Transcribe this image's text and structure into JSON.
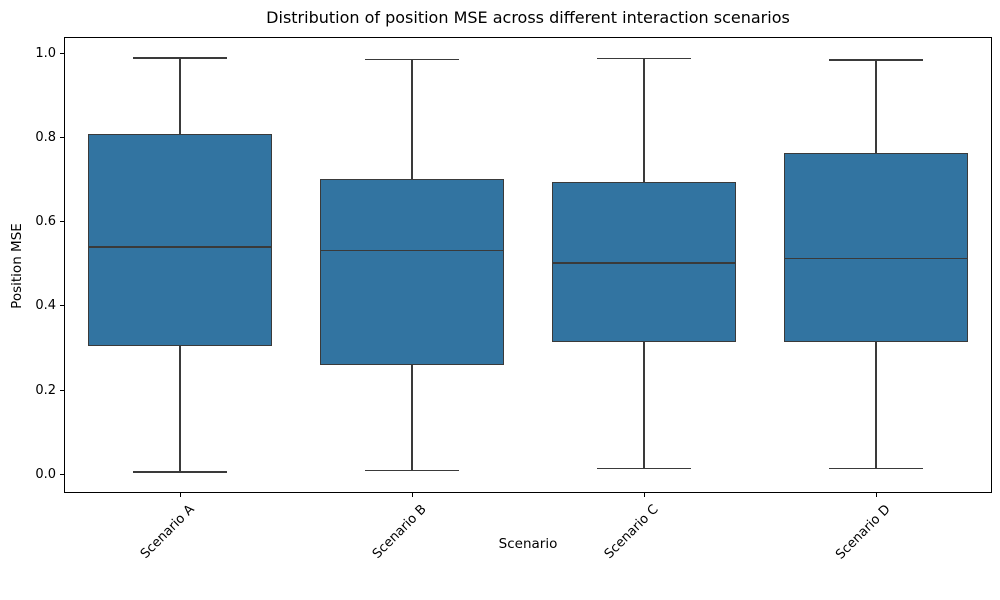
{
  "chart_data": {
    "type": "box",
    "title": "Distribution of position MSE across different interaction scenarios",
    "xlabel": "Scenario",
    "ylabel": "Position MSE",
    "categories": [
      "Scenario A",
      "Scenario B",
      "Scenario C",
      "Scenario D"
    ],
    "ytick_labels": [
      "0.0",
      "0.2",
      "0.4",
      "0.6",
      "0.8",
      "1.0"
    ],
    "ytick_values": [
      0.0,
      0.2,
      0.4,
      0.6,
      0.8,
      1.0
    ],
    "ylim": [
      -0.045,
      1.04
    ],
    "grid": "off",
    "legend": "none",
    "boxes": [
      {
        "label": "Scenario A",
        "whislo": 0.005,
        "q1": 0.305,
        "med": 0.54,
        "q3": 0.81,
        "whishi": 0.99
      },
      {
        "label": "Scenario B",
        "whislo": 0.008,
        "q1": 0.26,
        "med": 0.532,
        "q3": 0.703,
        "whishi": 0.987
      },
      {
        "label": "Scenario C",
        "whislo": 0.014,
        "q1": 0.315,
        "med": 0.502,
        "q3": 0.694,
        "whishi": 0.989
      },
      {
        "label": "Scenario D",
        "whislo": 0.013,
        "q1": 0.314,
        "med": 0.513,
        "q3": 0.765,
        "whishi": 0.985
      }
    ],
    "colors": {
      "box_fill": "#3274A1",
      "box_edge": "#3A3A3A",
      "whisker": "#3A3A3A",
      "median": "#3A3A3A",
      "spine": "#000000",
      "text": "#000000"
    }
  }
}
